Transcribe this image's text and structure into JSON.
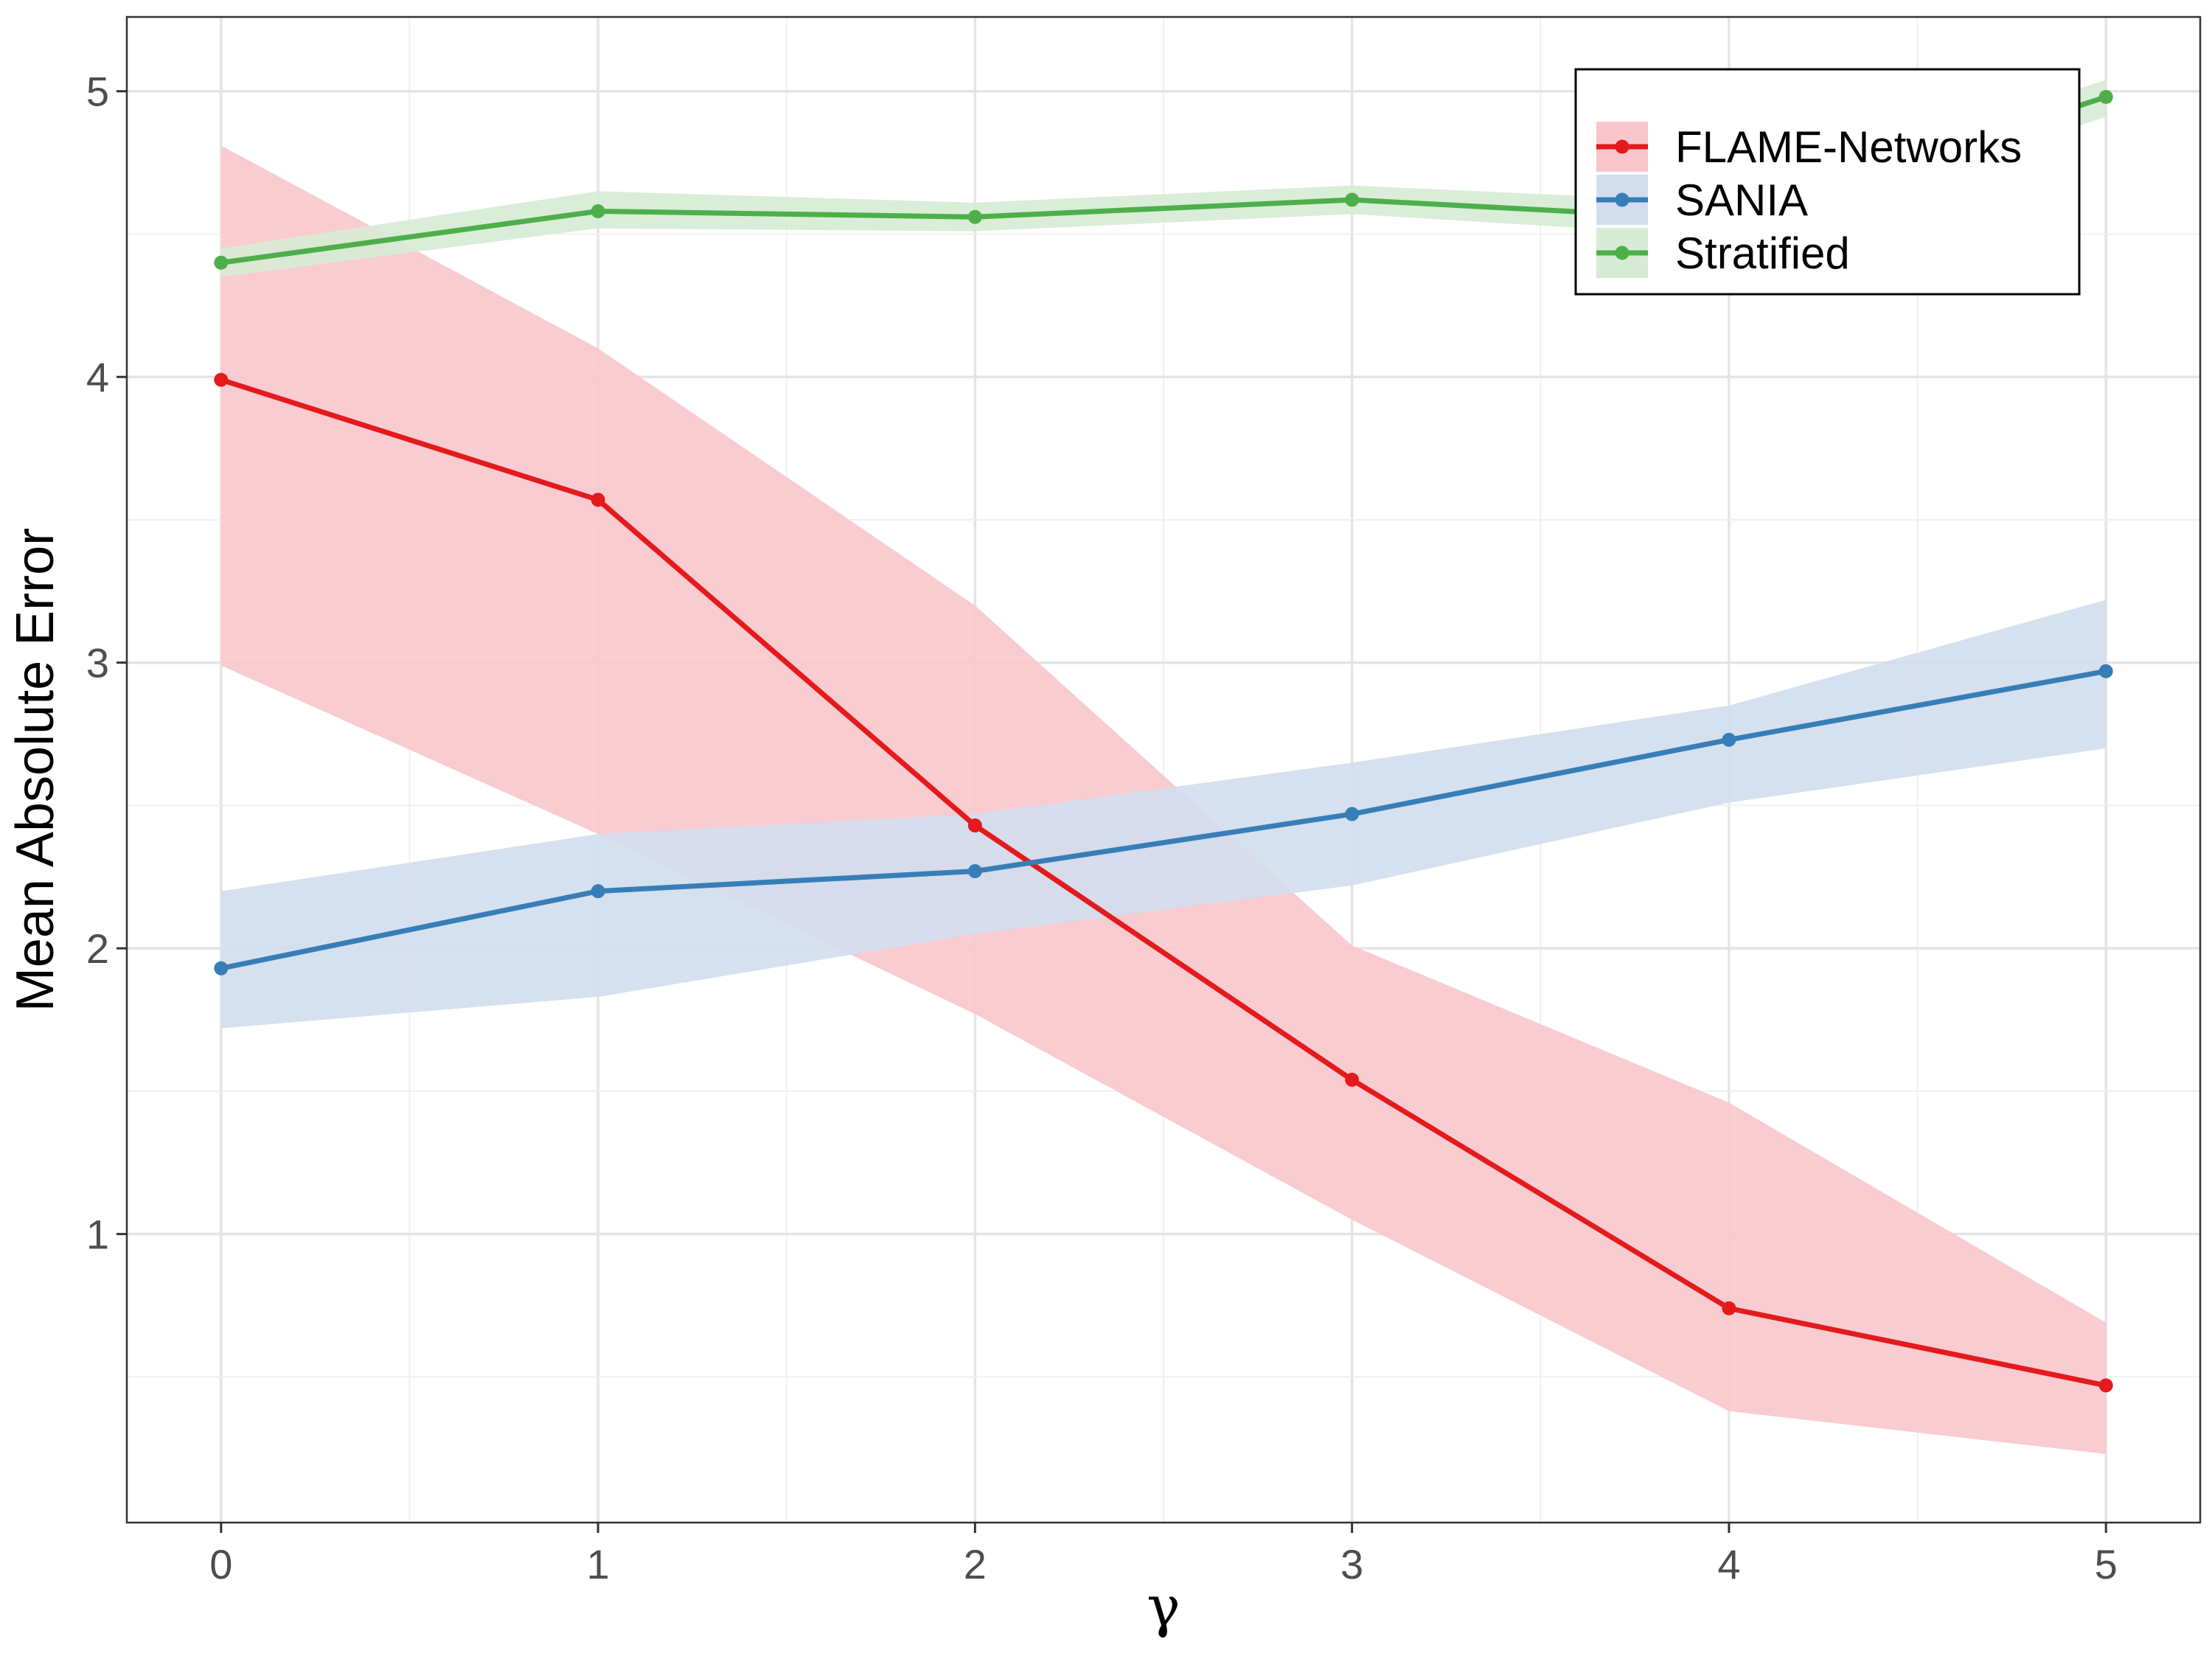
{
  "chart_data": {
    "type": "line",
    "title": "",
    "xlabel": "γ",
    "ylabel": "Mean Absolute Error",
    "x": [
      0,
      1,
      2,
      3,
      4,
      5
    ],
    "xlim": [
      -0.25,
      5.25
    ],
    "ylim": [
      -0.01,
      5.26
    ],
    "x_ticks": [
      0,
      1,
      2,
      3,
      4,
      5
    ],
    "y_ticks": [
      1,
      2,
      3,
      4,
      5
    ],
    "x_tick_labels": [
      "0",
      "1",
      "2",
      "3",
      "4",
      "5"
    ],
    "y_tick_labels": [
      "1",
      "2",
      "3",
      "4",
      "5"
    ],
    "grid": true,
    "legend_position": "top-right",
    "series": [
      {
        "name": "FLAME-Networks",
        "color": "#E41A1C",
        "band_color": "#F8C6CC",
        "values": [
          3.99,
          3.57,
          2.43,
          1.54,
          0.74,
          0.47
        ],
        "lower": [
          2.99,
          2.4,
          1.77,
          1.05,
          0.38,
          0.23
        ],
        "upper": [
          4.81,
          4.1,
          3.2,
          2.01,
          1.46,
          0.69
        ]
      },
      {
        "name": "SANIA",
        "color": "#377EB8",
        "band_color": "#D2DEED",
        "values": [
          1.93,
          2.2,
          2.27,
          2.47,
          2.73,
          2.97
        ],
        "lower": [
          1.72,
          1.83,
          2.05,
          2.22,
          2.51,
          2.7
        ],
        "upper": [
          2.2,
          2.4,
          2.47,
          2.65,
          2.85,
          3.22
        ]
      },
      {
        "name": "Stratified",
        "color": "#4DAF4A",
        "band_color": "#D6EBD4",
        "values": [
          4.4,
          4.58,
          4.56,
          4.62,
          4.55,
          4.98
        ],
        "lower": [
          4.35,
          4.52,
          4.51,
          4.57,
          4.49,
          4.91
        ],
        "upper": [
          4.45,
          4.65,
          4.61,
          4.67,
          4.61,
          5.04
        ]
      }
    ]
  }
}
